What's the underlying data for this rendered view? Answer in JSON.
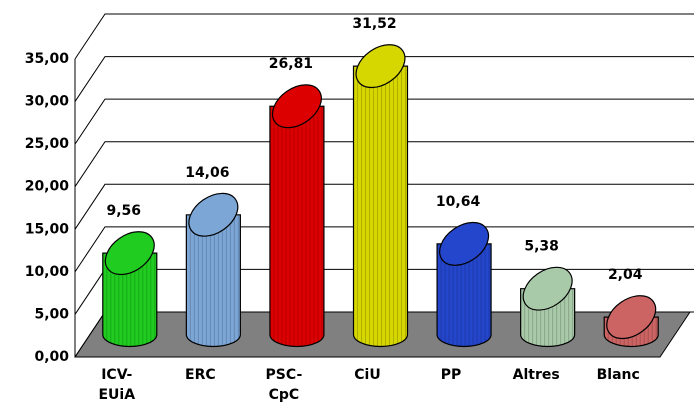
{
  "chart_data": {
    "type": "bar",
    "categories": [
      "ICV-EUiA",
      "ERC",
      "PSC-CpC",
      "CiU",
      "PP",
      "Altres",
      "Blanc"
    ],
    "values": [
      9.56,
      14.06,
      26.81,
      31.52,
      10.64,
      5.38,
      2.04
    ],
    "value_labels": [
      "9,56",
      "14,06",
      "26,81",
      "31,52",
      "10,64",
      "5,38",
      "2,04"
    ],
    "colors": [
      "#1fcc1f",
      "#7ba6d6",
      "#dd0000",
      "#d6d600",
      "#2446cc",
      "#a9caa9",
      "#cc6464"
    ],
    "ylim": [
      0,
      35
    ],
    "yticks": [
      {
        "value": 0,
        "label": "0,00"
      },
      {
        "value": 5,
        "label": "5,00"
      },
      {
        "value": 10,
        "label": "10,00"
      },
      {
        "value": 15,
        "label": "15,00"
      },
      {
        "value": 20,
        "label": "20,00"
      },
      {
        "value": 25,
        "label": "25,00"
      },
      {
        "value": 30,
        "label": "30,00"
      },
      {
        "value": 35,
        "label": "35,00"
      }
    ],
    "grid": true
  }
}
